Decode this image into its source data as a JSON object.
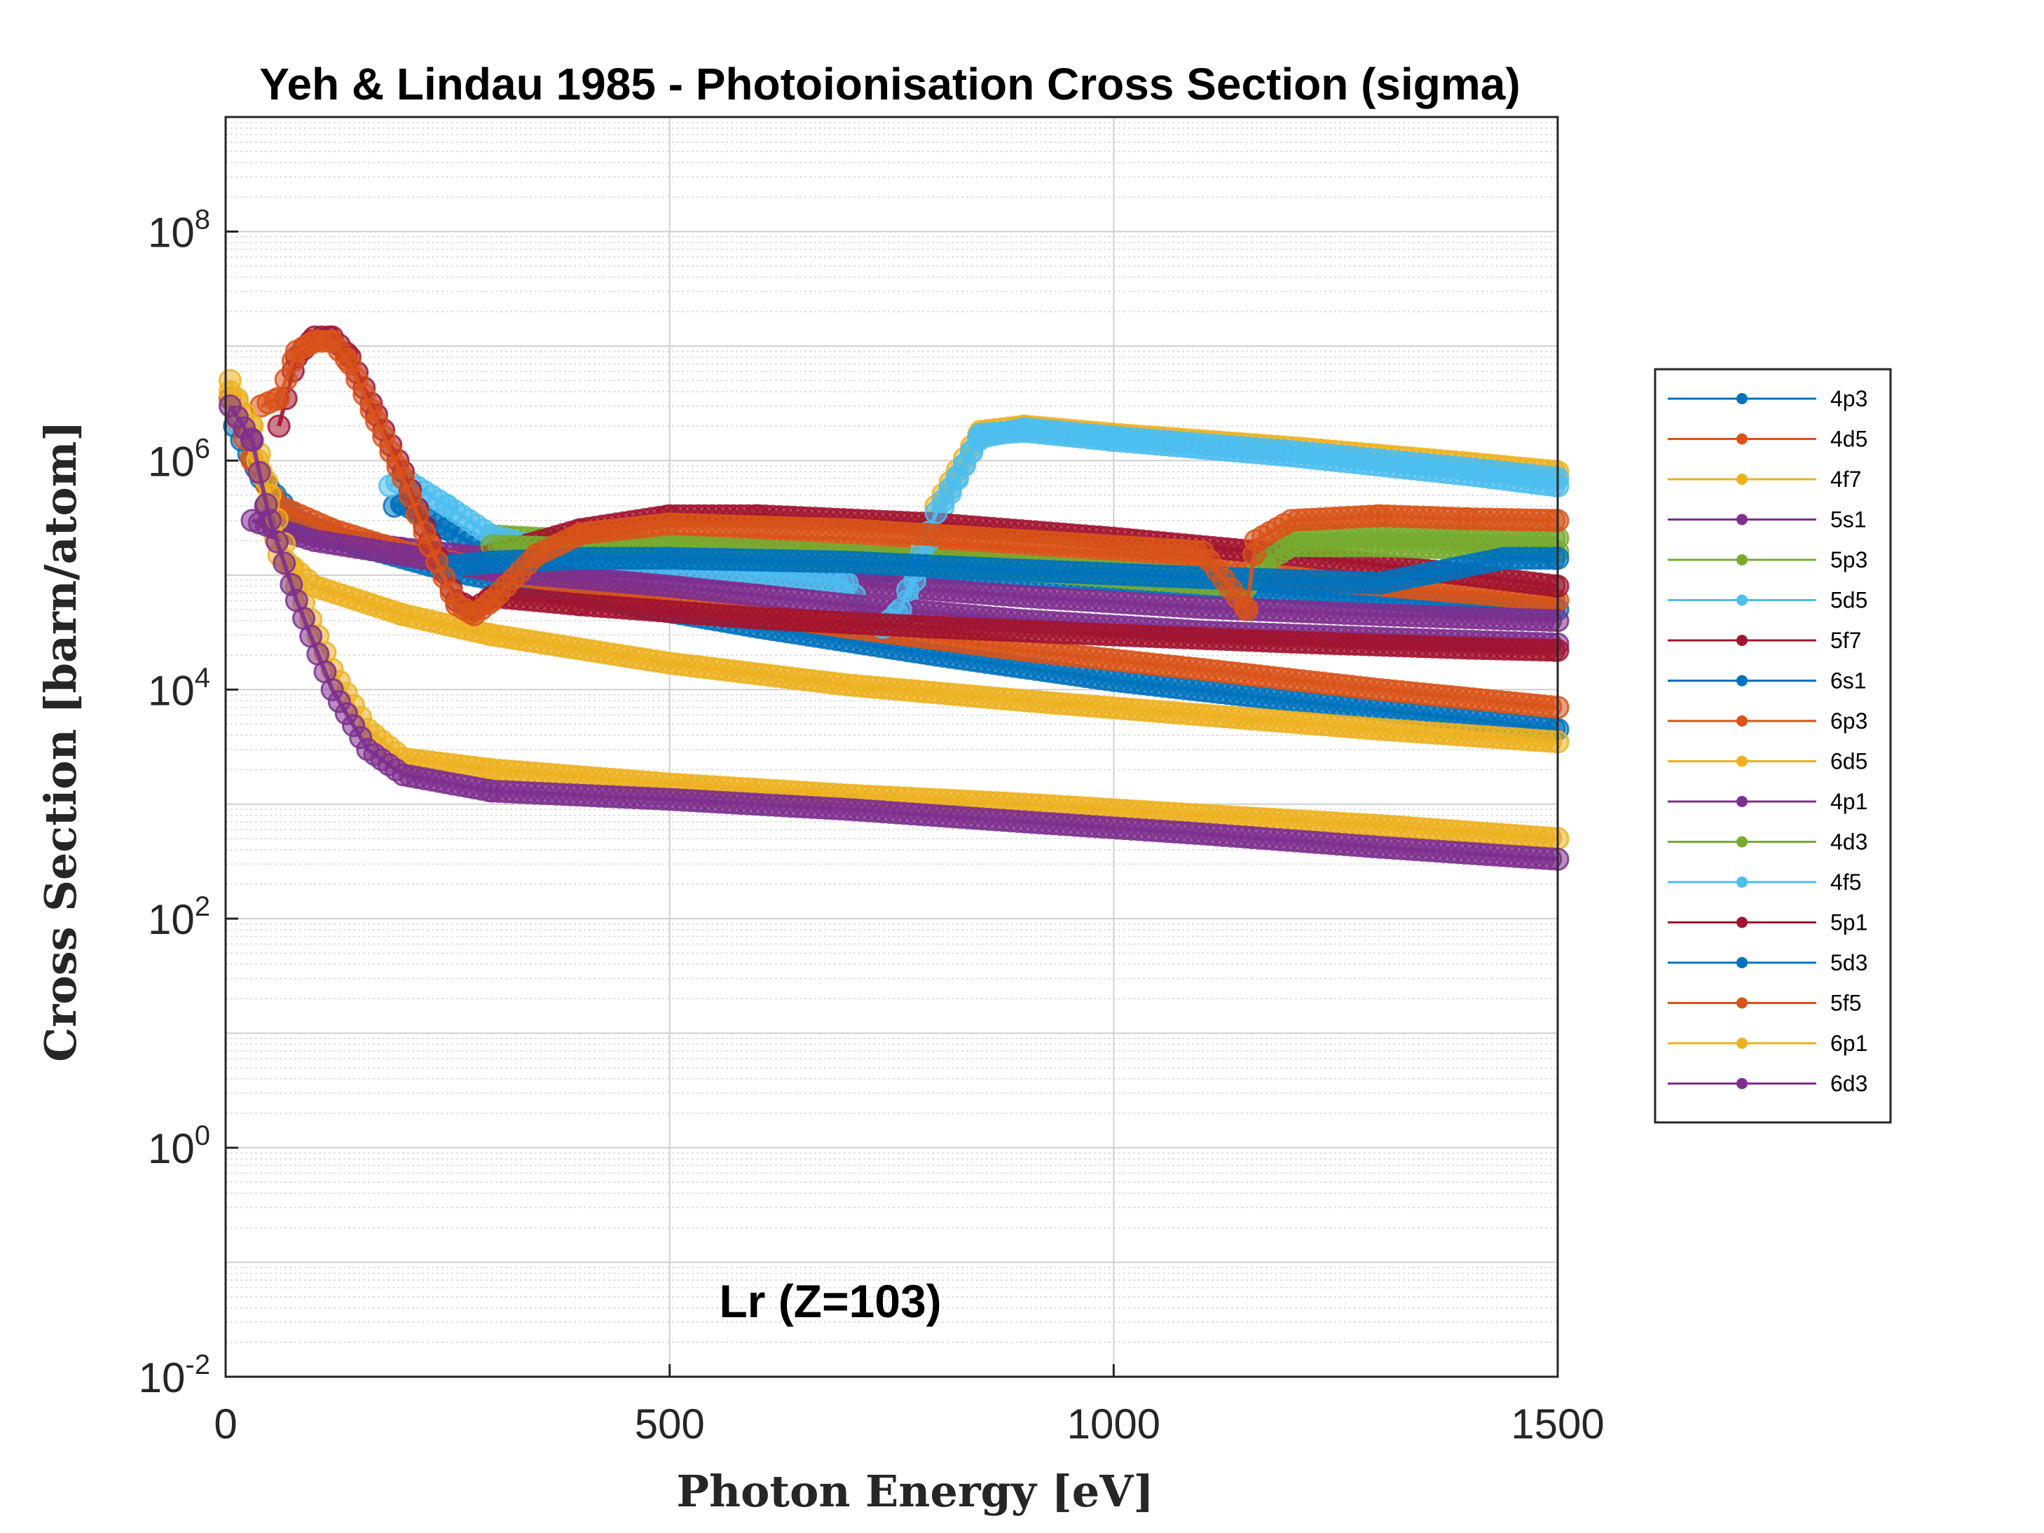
{
  "chart_data": {
    "type": "line",
    "title": "Yeh & Lindau 1985 - Photoionisation Cross Section (sigma)",
    "xlabel": "Photon Energy [eV]",
    "ylabel": "Cross Section [barn/atom]",
    "xlim": [
      0,
      1500
    ],
    "ylim": [
      0.01,
      1000000000
    ],
    "yscale": "log",
    "xticks": [
      0,
      500,
      1000,
      1500
    ],
    "yticks": [
      0.01,
      1,
      100,
      10000,
      1000000,
      100000000
    ],
    "ytick_labels": [
      {
        "base": "10",
        "exp": "-2"
      },
      {
        "base": "10",
        "exp": "0"
      },
      {
        "base": "10",
        "exp": "2"
      },
      {
        "base": "10",
        "exp": "4"
      },
      {
        "base": "10",
        "exp": "6"
      },
      {
        "base": "10",
        "exp": "8"
      }
    ],
    "grid": true,
    "legend_position": "right",
    "annotation": "Lr (Z=103)",
    "series": [
      {
        "name": "4p3",
        "color": "#0072BD",
        "points": [
          [
            190,
            400000
          ],
          [
            200,
            420000
          ],
          [
            250,
            250000
          ],
          [
            300,
            150000
          ],
          [
            400,
            120000
          ],
          [
            500,
            120000
          ],
          [
            600,
            115000
          ],
          [
            800,
            105000
          ],
          [
            1000,
            90000
          ],
          [
            1200,
            70000
          ],
          [
            1400,
            55000
          ],
          [
            1500,
            50000
          ]
        ]
      },
      {
        "name": "4d5",
        "color": "#D95319",
        "points": [
          [
            245,
            130000
          ],
          [
            300,
            150000
          ],
          [
            400,
            180000
          ],
          [
            500,
            190000
          ],
          [
            600,
            185000
          ],
          [
            800,
            160000
          ],
          [
            1000,
            130000
          ],
          [
            1150,
            110000
          ],
          [
            1200,
            95000
          ],
          [
            1400,
            70000
          ],
          [
            1500,
            60000
          ]
        ]
      },
      {
        "name": "4f7",
        "color": "#EDB120",
        "points": [
          [
            740,
            40000
          ],
          [
            760,
            55000
          ],
          [
            800,
            400000
          ],
          [
            850,
            1800000
          ],
          [
            900,
            2000000
          ],
          [
            1000,
            1700000
          ],
          [
            1200,
            1300000
          ],
          [
            1400,
            950000
          ],
          [
            1500,
            800000
          ]
        ]
      },
      {
        "name": "5s1",
        "color": "#7E2F8E",
        "points": [
          [
            45,
            400000
          ],
          [
            60,
            280000
          ],
          [
            100,
            220000
          ],
          [
            200,
            170000
          ],
          [
            300,
            140000
          ],
          [
            500,
            110000
          ],
          [
            700,
            85000
          ],
          [
            900,
            65000
          ],
          [
            1100,
            52000
          ],
          [
            1300,
            45000
          ],
          [
            1500,
            40000
          ]
        ]
      },
      {
        "name": "5p3",
        "color": "#77AC30",
        "points": [
          [
            300,
            220000
          ],
          [
            400,
            200000
          ],
          [
            500,
            180000
          ],
          [
            700,
            150000
          ],
          [
            900,
            120000
          ],
          [
            1100,
            95000
          ],
          [
            1155,
            90000
          ],
          [
            1170,
            150000
          ],
          [
            1200,
            220000
          ],
          [
            1300,
            230000
          ],
          [
            1400,
            220000
          ],
          [
            1500,
            210000
          ]
        ]
      },
      {
        "name": "5d5",
        "color": "#4DBEEE",
        "points": [
          [
            185,
            600000
          ],
          [
            200,
            700000
          ],
          [
            250,
            400000
          ],
          [
            300,
            220000
          ],
          [
            400,
            140000
          ],
          [
            500,
            120000
          ],
          [
            600,
            105000
          ],
          [
            700,
            85000
          ],
          [
            735,
            30000
          ],
          [
            760,
            40000
          ],
          [
            800,
            300000
          ],
          [
            850,
            1700000
          ],
          [
            900,
            1800000
          ],
          [
            1000,
            1500000
          ],
          [
            1200,
            1100000
          ],
          [
            1400,
            750000
          ],
          [
            1500,
            600000
          ]
        ]
      },
      {
        "name": "5f7",
        "color": "#A2142F",
        "points": [
          [
            300,
            150000
          ],
          [
            400,
            250000
          ],
          [
            500,
            330000
          ],
          [
            600,
            330000
          ],
          [
            800,
            280000
          ],
          [
            1000,
            210000
          ],
          [
            1200,
            150000
          ],
          [
            1400,
            100000
          ],
          [
            1500,
            80000
          ]
        ]
      },
      {
        "name": "6s1",
        "color": "#0072BD",
        "points": [
          [
            10,
            2000000
          ],
          [
            40,
            700000
          ],
          [
            80,
            300000
          ],
          [
            150,
            180000
          ],
          [
            250,
            110000
          ],
          [
            400,
            65000
          ],
          [
            600,
            35000
          ],
          [
            800,
            20000
          ],
          [
            1000,
            12000
          ],
          [
            1200,
            8000
          ],
          [
            1400,
            5500
          ],
          [
            1500,
            4500
          ]
        ]
      },
      {
        "name": "6p3",
        "color": "#D95319",
        "points": [
          [
            5,
            3500000
          ],
          [
            30,
            1000000
          ],
          [
            60,
            400000
          ],
          [
            120,
            250000
          ],
          [
            200,
            160000
          ],
          [
            300,
            110000
          ],
          [
            500,
            60000
          ],
          [
            700,
            35000
          ],
          [
            900,
            22000
          ],
          [
            1100,
            15000
          ],
          [
            1300,
            10000
          ],
          [
            1500,
            7000
          ]
        ]
      },
      {
        "name": "6d5",
        "color": "#EDB120",
        "points": [
          [
            5,
            5000000
          ],
          [
            20,
            2500000
          ],
          [
            40,
            800000
          ],
          [
            60,
            150000
          ],
          [
            100,
            80000
          ],
          [
            200,
            45000
          ],
          [
            300,
            30000
          ],
          [
            500,
            17000
          ],
          [
            700,
            11000
          ],
          [
            900,
            8000
          ],
          [
            1100,
            6000
          ],
          [
            1300,
            4500
          ],
          [
            1500,
            3500
          ]
        ]
      },
      {
        "name": "4p1",
        "color": "#7E2F8E",
        "points": [
          [
            30,
            300000
          ],
          [
            60,
            250000
          ],
          [
            100,
            200000
          ],
          [
            200,
            150000
          ],
          [
            300,
            110000
          ],
          [
            500,
            80000
          ],
          [
            700,
            55000
          ],
          [
            900,
            40000
          ],
          [
            1100,
            32000
          ],
          [
            1300,
            28000
          ],
          [
            1500,
            25000
          ]
        ]
      },
      {
        "name": "4d3",
        "color": "#77AC30",
        "points": [
          [
            300,
            180000
          ],
          [
            400,
            170000
          ],
          [
            500,
            160000
          ],
          [
            700,
            135000
          ],
          [
            900,
            110000
          ],
          [
            1100,
            85000
          ],
          [
            1150,
            80000
          ],
          [
            1170,
            130000
          ],
          [
            1200,
            180000
          ],
          [
            1300,
            180000
          ],
          [
            1400,
            170000
          ],
          [
            1500,
            160000
          ]
        ]
      },
      {
        "name": "4f5",
        "color": "#4DBEEE",
        "points": [
          [
            740,
            35000
          ],
          [
            760,
            50000
          ],
          [
            800,
            350000
          ],
          [
            850,
            1600000
          ],
          [
            900,
            1900000
          ],
          [
            1000,
            1600000
          ],
          [
            1200,
            1200000
          ],
          [
            1400,
            850000
          ],
          [
            1500,
            700000
          ]
        ]
      },
      {
        "name": "5p1",
        "color": "#A2142F",
        "points": [
          [
            60,
            2000000
          ],
          [
            80,
            8000000
          ],
          [
            100,
            12000000
          ],
          [
            120,
            12000000
          ],
          [
            140,
            8000000
          ],
          [
            170,
            2500000
          ],
          [
            200,
            800000
          ],
          [
            230,
            200000
          ],
          [
            260,
            60000
          ],
          [
            280,
            50000
          ],
          [
            300,
            65000
          ],
          [
            400,
            55000
          ],
          [
            600,
            42000
          ],
          [
            800,
            35000
          ],
          [
            1000,
            30000
          ],
          [
            1200,
            26000
          ],
          [
            1400,
            23000
          ],
          [
            1500,
            22000
          ]
        ]
      },
      {
        "name": "5d3",
        "color": "#0072BD",
        "points": [
          [
            250,
            120000
          ],
          [
            300,
            130000
          ],
          [
            400,
            140000
          ],
          [
            500,
            140000
          ],
          [
            700,
            130000
          ],
          [
            900,
            110000
          ],
          [
            1100,
            95000
          ],
          [
            1300,
            85000
          ],
          [
            1440,
            140000
          ],
          [
            1500,
            140000
          ]
        ]
      },
      {
        "name": "5f5",
        "color": "#D95319",
        "points": [
          [
            40,
            3000000
          ],
          [
            60,
            3500000
          ],
          [
            80,
            9000000
          ],
          [
            100,
            11000000
          ],
          [
            120,
            11000000
          ],
          [
            140,
            7000000
          ],
          [
            170,
            2200000
          ],
          [
            200,
            700000
          ],
          [
            230,
            180000
          ],
          [
            260,
            55000
          ],
          [
            280,
            45000
          ],
          [
            300,
            60000
          ],
          [
            350,
            150000
          ],
          [
            400,
            230000
          ],
          [
            500,
            280000
          ],
          [
            700,
            250000
          ],
          [
            900,
            200000
          ],
          [
            1100,
            160000
          ],
          [
            1150,
            50000
          ],
          [
            1160,
            200000
          ],
          [
            1200,
            300000
          ],
          [
            1300,
            330000
          ],
          [
            1400,
            310000
          ],
          [
            1500,
            300000
          ]
        ]
      },
      {
        "name": "6p1",
        "color": "#EDB120",
        "points": [
          [
            5,
            4000000
          ],
          [
            30,
            2000000
          ],
          [
            50,
            500000
          ],
          [
            80,
            80000
          ],
          [
            120,
            15000
          ],
          [
            160,
            4500
          ],
          [
            200,
            2500
          ],
          [
            300,
            2000
          ],
          [
            500,
            1500
          ],
          [
            700,
            1200
          ],
          [
            900,
            1000
          ],
          [
            1100,
            800
          ],
          [
            1300,
            650
          ],
          [
            1500,
            500
          ]
        ]
      },
      {
        "name": "6d3",
        "color": "#7E2F8E",
        "points": [
          [
            5,
            3000000
          ],
          [
            30,
            1500000
          ],
          [
            50,
            300000
          ],
          [
            80,
            60000
          ],
          [
            120,
            10000
          ],
          [
            160,
            3000
          ],
          [
            200,
            1800
          ],
          [
            300,
            1300
          ],
          [
            500,
            1100
          ],
          [
            700,
            900
          ],
          [
            900,
            700
          ],
          [
            1100,
            550
          ],
          [
            1300,
            420
          ],
          [
            1500,
            330
          ]
        ]
      }
    ]
  }
}
